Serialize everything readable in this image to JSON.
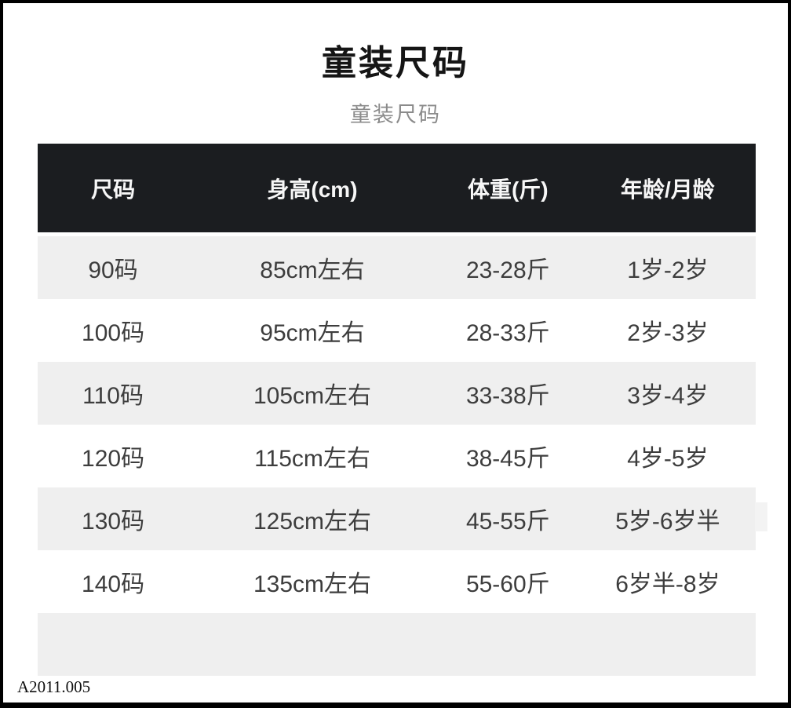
{
  "header": {
    "title": "童装尺码",
    "subtitle": "童装尺码"
  },
  "footer": {
    "code": "A2011.005"
  },
  "chart_data": {
    "type": "table",
    "title": "童装尺码",
    "columns": [
      "尺码",
      "身高(cm)",
      "体重(斤)",
      "年龄/月龄"
    ],
    "rows": [
      [
        "90码",
        "85cm左右",
        "23-28斤",
        "1岁-2岁"
      ],
      [
        "100码",
        "95cm左右",
        "28-33斤",
        "2岁-3岁"
      ],
      [
        "110码",
        "105cm左右",
        "33-38斤",
        "3岁-4岁"
      ],
      [
        "120码",
        "115cm左右",
        "38-45斤",
        "4岁-5岁"
      ],
      [
        "130码",
        "125cm左右",
        "45-55斤",
        "5岁-6岁半"
      ],
      [
        "140码",
        "135cm左右",
        "55-60斤",
        "6岁半-8岁"
      ]
    ],
    "layout": {
      "header_position": "top",
      "row_striping": "odd-rows-gray",
      "first_row_stripe": true
    }
  },
  "colors": {
    "frame_border": "#000000",
    "header_bg": "#1b1d20",
    "header_text": "#f7f7f7",
    "row_alt_bg": "#efefef",
    "row_text": "#3d3d3d",
    "title_text": "#151515",
    "subtitle_text": "#8b8b8b"
  }
}
